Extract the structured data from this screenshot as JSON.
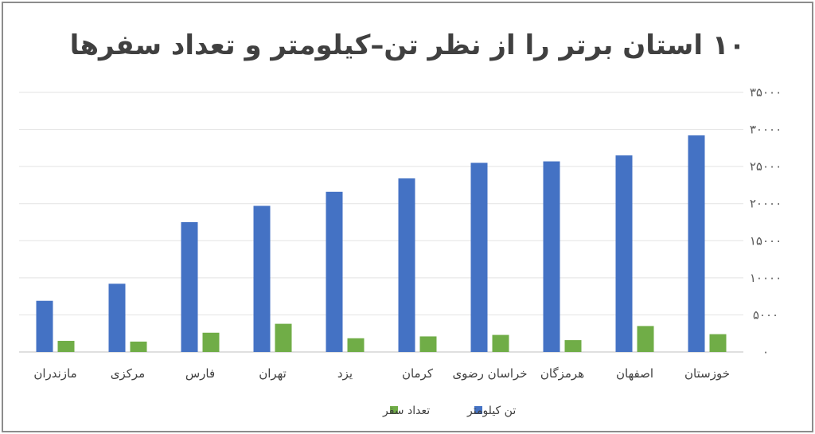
{
  "chart_data": {
    "type": "bar",
    "title": "۱۰ استان برتر را از نظر تن–کیلومتر و تعداد سفرها",
    "xlabel": "",
    "ylabel": "",
    "ylim": [
      0,
      35000
    ],
    "y_ticks": [
      0,
      5000,
      10000,
      15000,
      20000,
      25000,
      30000,
      35000
    ],
    "y_tick_labels": [
      "۰",
      "۵۰۰۰",
      "۱۰۰۰۰",
      "۱۵۰۰۰",
      "۲۰۰۰۰",
      "۲۵۰۰۰",
      "۳۰۰۰۰",
      "۳۵۰۰۰"
    ],
    "categories": [
      "خوزستان",
      "اصفهان",
      "هرمزگان",
      "خراسان رضوی",
      "کرمان",
      "یزد",
      "تهران",
      "فارس",
      "مرکزی",
      "مازندران"
    ],
    "series": [
      {
        "name": "تن کیلومتر",
        "color": "#4472c4",
        "values": [
          29200,
          26500,
          25700,
          25500,
          23400,
          21600,
          19700,
          17500,
          9200,
          6900
        ]
      },
      {
        "name": "تعداد سفر",
        "color": "#70ad47",
        "values": [
          2400,
          3500,
          1600,
          2300,
          2100,
          1850,
          3800,
          2600,
          1400,
          1500
        ]
      }
    ],
    "grid": true,
    "legend_position": "bottom",
    "direction": "rtl"
  }
}
